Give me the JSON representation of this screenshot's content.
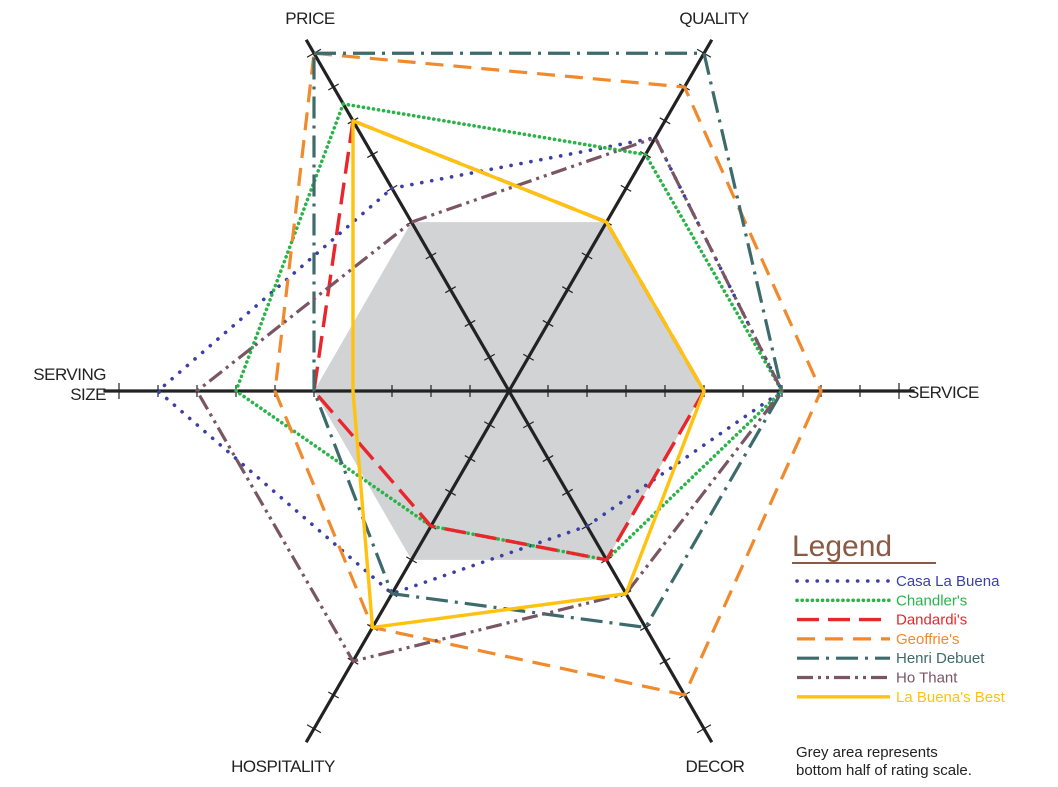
{
  "chart_data": {
    "type": "radar",
    "axes": [
      "PRICE",
      "QUALITY",
      "SERVICE",
      "DECOR",
      "HOSPITALITY",
      "SERVING SIZE"
    ],
    "scale_max": 10,
    "grey_area_max": 5,
    "series": [
      {
        "name": "Casa La Buena",
        "color": "#3b3fa6",
        "dash": "dots",
        "values": [
          6,
          7.5,
          7,
          4,
          6,
          9
        ]
      },
      {
        "name": "Chandler's",
        "color": "#2bb34a",
        "dash": "dense-dots",
        "values": [
          8.5,
          7,
          7,
          5,
          4,
          7
        ]
      },
      {
        "name": "Dandardi's",
        "color": "#e8262b",
        "dash": "long-dash",
        "values": [
          8,
          5,
          5,
          5,
          4,
          5
        ]
      },
      {
        "name": "Geoffrie's",
        "color": "#f08a2c",
        "dash": "dash",
        "values": [
          10,
          9,
          8,
          9,
          7,
          6
        ]
      },
      {
        "name": "Henri Debuet",
        "color": "#3d6b6b",
        "dash": "dash-dot",
        "values": [
          10,
          10,
          7,
          7,
          6,
          5
        ]
      },
      {
        "name": "Ho Thant",
        "color": "#7a5664",
        "dash": "dash-dot-dot",
        "values": [
          5,
          7.5,
          7,
          6,
          8,
          8
        ]
      },
      {
        "name": "La Buena's Best",
        "color": "#ffc20e",
        "dash": "solid",
        "values": [
          8,
          5,
          5,
          6,
          7,
          4
        ]
      }
    ],
    "legend": {
      "title": "Legend",
      "position": "bottom-right"
    },
    "note": [
      "Grey area represents",
      "bottom half of rating scale."
    ]
  },
  "colors": {
    "axis": "#222222",
    "grey_area": "#d1d3d4",
    "legend_title": "#8a5a44"
  }
}
